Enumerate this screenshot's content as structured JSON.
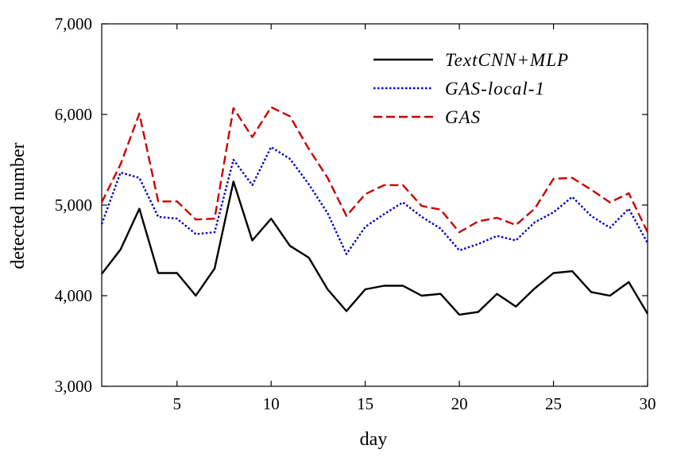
{
  "chart_data": {
    "type": "line",
    "xlabel": "day",
    "ylabel": "detected number",
    "xlim": [
      1,
      30
    ],
    "ylim": [
      3000,
      7000
    ],
    "x_ticks": [
      5,
      10,
      15,
      20,
      25,
      30
    ],
    "x_tick_labels": [
      "5",
      "10",
      "15",
      "20",
      "25",
      "30"
    ],
    "y_ticks": [
      3000,
      4000,
      5000,
      6000,
      7000
    ],
    "y_tick_labels": [
      "3,000",
      "4,000",
      "5,000",
      "6,000",
      "7,000"
    ],
    "grid": false,
    "legend_position": "top-right",
    "x": [
      1,
      2,
      3,
      4,
      5,
      6,
      7,
      8,
      9,
      10,
      11,
      12,
      13,
      14,
      15,
      16,
      17,
      18,
      19,
      20,
      21,
      22,
      23,
      24,
      25,
      26,
      27,
      28,
      29,
      30
    ],
    "series": [
      {
        "name": "TextCNN+MLP",
        "color": "#000000",
        "dash": "solid",
        "values": [
          4240,
          4510,
          4960,
          4250,
          4250,
          4000,
          4300,
          5260,
          4610,
          4850,
          4550,
          4420,
          4070,
          3830,
          4070,
          4110,
          4110,
          4000,
          4020,
          3790,
          3820,
          4020,
          3880,
          4080,
          4250,
          4270,
          4040,
          4000,
          4150,
          3800
        ]
      },
      {
        "name": "GAS-local-1",
        "color": "#0000cc",
        "dash": "dotted",
        "values": [
          4790,
          5360,
          5300,
          4870,
          4850,
          4680,
          4700,
          5500,
          5220,
          5640,
          5510,
          5230,
          4910,
          4460,
          4760,
          4900,
          5030,
          4870,
          4740,
          4500,
          4570,
          4660,
          4610,
          4810,
          4920,
          5090,
          4880,
          4750,
          4960,
          4580
        ]
      },
      {
        "name": "GAS",
        "color": "#cc0000",
        "dash": "dashed",
        "values": [
          5030,
          5450,
          6010,
          5040,
          5040,
          4840,
          4850,
          6070,
          5750,
          6080,
          5980,
          5620,
          5300,
          4880,
          5120,
          5220,
          5220,
          4990,
          4950,
          4700,
          4820,
          4860,
          4780,
          4960,
          5290,
          5300,
          5170,
          5030,
          5130,
          4700
        ]
      }
    ]
  }
}
